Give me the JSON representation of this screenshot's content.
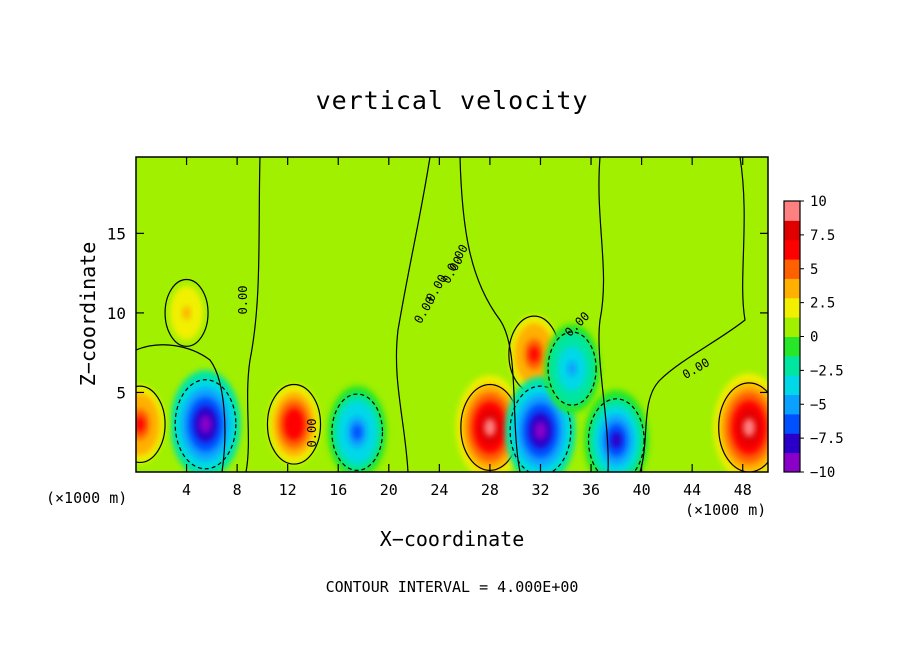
{
  "chart_data": {
    "type": "heatmap",
    "title": "vertical velocity",
    "xlabel": "X−coordinate",
    "ylabel": "Z−coordinate",
    "x_unit": "(×1000 m)",
    "x_ticks": [
      4,
      8,
      12,
      16,
      20,
      24,
      28,
      32,
      36,
      40,
      44,
      48
    ],
    "y_ticks": [
      5,
      10,
      15
    ],
    "xlim": [
      0,
      50
    ],
    "ylim": [
      0,
      19.8
    ],
    "colorbar": {
      "ticks": [
        "10",
        "7.5",
        "5",
        "2.5",
        "0",
        "−2.5",
        "−5",
        "−7.5",
        "−10"
      ],
      "range": [
        -10,
        10
      ],
      "colors": [
        "#8a00c8",
        "#2a00c8",
        "#0050ff",
        "#0aa0ff",
        "#00d8e8",
        "#00e6a0",
        "#28e628",
        "#a0f000",
        "#f0f000",
        "#ffb000",
        "#ff6000",
        "#ff0000",
        "#e00000",
        "#ff8080"
      ]
    },
    "contour_interval": "CONTOUR INTERVAL = 4.000E+00",
    "contour_labels": [
      "0.00",
      "0.00",
      "0.00",
      "0.00",
      "0.00",
      "0.00",
      "0.00",
      "0.00"
    ],
    "features": [
      {
        "x": 5.5,
        "z": 3.0,
        "value": -10
      },
      {
        "x": 12.5,
        "z": 3.0,
        "value": 7
      },
      {
        "x": 17.5,
        "z": 2.5,
        "value": -6
      },
      {
        "x": 28.0,
        "z": 2.8,
        "value": 9
      },
      {
        "x": 31.5,
        "z": 7.4,
        "value": 6
      },
      {
        "x": 32.0,
        "z": 2.6,
        "value": -10
      },
      {
        "x": 34.5,
        "z": 6.5,
        "value": -5
      },
      {
        "x": 38.0,
        "z": 2.0,
        "value": -8
      },
      {
        "x": 48.5,
        "z": 2.8,
        "value": 10
      },
      {
        "x": 0.3,
        "z": 3.0,
        "value": 6
      },
      {
        "x": 4.0,
        "z": 10.0,
        "value": 3
      }
    ]
  }
}
